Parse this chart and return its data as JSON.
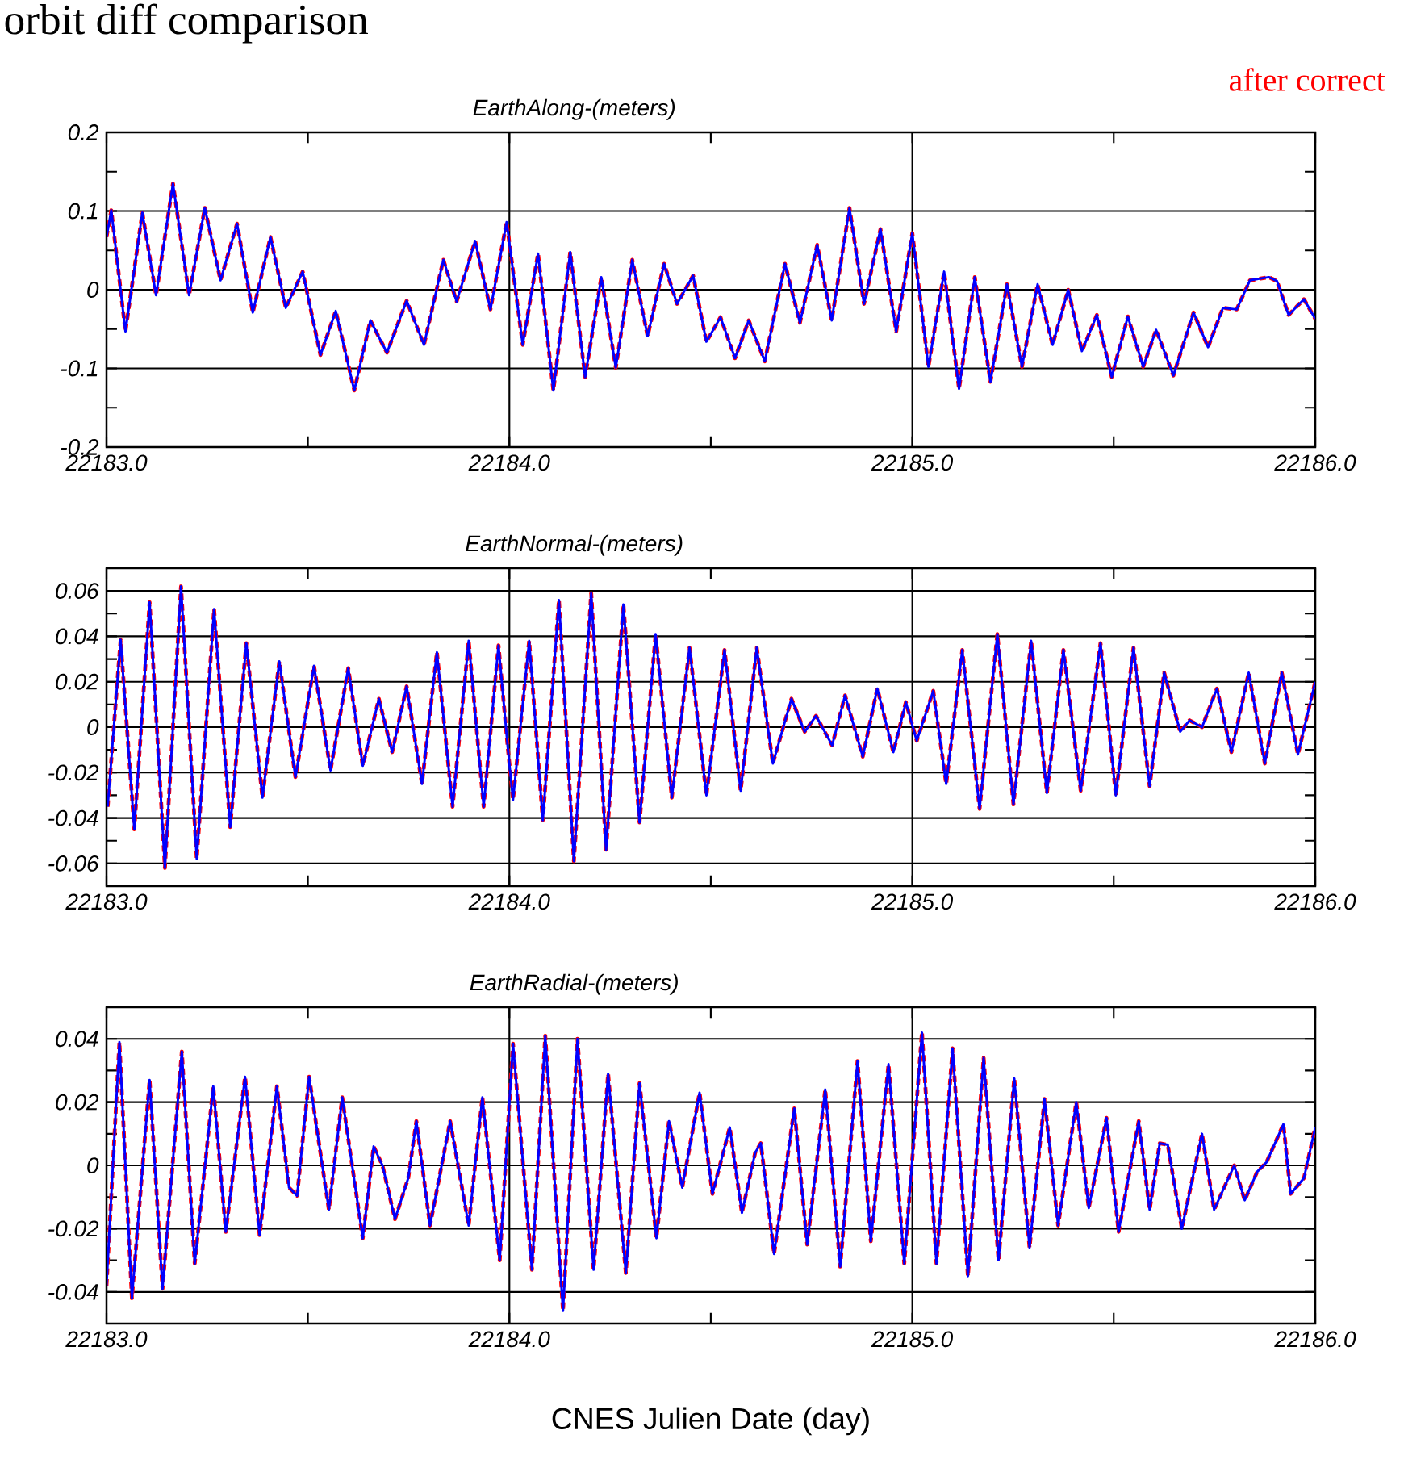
{
  "chart_data": [
    {
      "type": "line",
      "title": "orbit diff comparison",
      "subtitle": "EarthAlong-(meters)",
      "grid": true,
      "xlim": [
        22183,
        22186
      ],
      "ylim": [
        -0.2,
        0.2
      ],
      "xticks": [
        {
          "value": 22183,
          "label": "22183.0"
        },
        {
          "value": 22184,
          "label": "22184.0"
        },
        {
          "value": 22185,
          "label": "22185.0"
        },
        {
          "value": 22186,
          "label": "22186.0"
        }
      ],
      "yticks": [
        -0.2,
        -0.1,
        0,
        0.1,
        0.2
      ],
      "x": [
        22183.0,
        22183.012,
        22183.047,
        22183.089,
        22183.123,
        22183.165,
        22183.205,
        22183.244,
        22183.283,
        22183.324,
        22183.363,
        22183.407,
        22183.445,
        22183.487,
        22183.531,
        22183.569,
        22183.615,
        22183.655,
        22183.696,
        22183.745,
        22183.788,
        22183.836,
        22183.869,
        22183.915,
        22183.953,
        22183.993,
        22184.033,
        22184.071,
        22184.109,
        22184.151,
        22184.188,
        22184.228,
        22184.264,
        22184.305,
        22184.343,
        22184.384,
        22184.416,
        22184.456,
        22184.489,
        22184.524,
        22184.56,
        22184.594,
        22184.634,
        22184.684,
        22184.721,
        22184.764,
        22184.8,
        22184.844,
        22184.88,
        22184.921,
        22184.96,
        22185.0,
        22185.04,
        22185.079,
        22185.116,
        22185.155,
        22185.194,
        22185.235,
        22185.272,
        22185.311,
        22185.348,
        22185.387,
        22185.421,
        22185.458,
        22185.495,
        22185.535,
        22185.573,
        22185.605,
        22185.648,
        22185.698,
        22185.734,
        22185.771,
        22185.805,
        22185.838,
        22185.885,
        22185.905,
        22185.934,
        22185.972,
        22186.0
      ],
      "series": [
        {
          "color": "#0000ff",
          "line_style": "solid",
          "values": [
            0.067,
            0.101,
            -0.053,
            0.098,
            -0.007,
            0.135,
            -0.007,
            0.104,
            0.012,
            0.084,
            -0.029,
            0.067,
            -0.023,
            0.023,
            -0.083,
            -0.027,
            -0.128,
            -0.039,
            -0.08,
            -0.014,
            -0.07,
            0.038,
            -0.015,
            0.062,
            -0.025,
            0.086,
            -0.07,
            0.046,
            -0.128,
            0.048,
            -0.111,
            0.016,
            -0.099,
            0.038,
            -0.059,
            0.033,
            -0.018,
            0.018,
            -0.066,
            -0.035,
            -0.087,
            -0.039,
            -0.091,
            0.033,
            -0.042,
            0.057,
            -0.039,
            0.104,
            -0.018,
            0.077,
            -0.053,
            0.072,
            -0.098,
            0.023,
            -0.126,
            0.016,
            -0.117,
            0.007,
            -0.098,
            0.007,
            -0.07,
            0.0,
            -0.078,
            -0.032,
            -0.111,
            -0.034,
            -0.098,
            -0.051,
            -0.109,
            -0.029,
            -0.073,
            -0.023,
            -0.025,
            0.012,
            0.016,
            0.011,
            -0.032,
            -0.012,
            -0.037
          ]
        },
        {
          "name": "after correct",
          "color": "#ff0000",
          "line_style": "dashed",
          "values": [
            0.067,
            0.101,
            -0.053,
            0.098,
            -0.007,
            0.135,
            -0.007,
            0.104,
            0.012,
            0.084,
            -0.029,
            0.067,
            -0.023,
            0.023,
            -0.083,
            -0.027,
            -0.128,
            -0.039,
            -0.08,
            -0.014,
            -0.07,
            0.038,
            -0.015,
            0.062,
            -0.025,
            0.086,
            -0.07,
            0.046,
            -0.128,
            0.048,
            -0.111,
            0.016,
            -0.099,
            0.038,
            -0.059,
            0.033,
            -0.018,
            0.018,
            -0.066,
            -0.035,
            -0.087,
            -0.039,
            -0.091,
            0.033,
            -0.042,
            0.057,
            -0.039,
            0.104,
            -0.018,
            0.077,
            -0.053,
            0.072,
            -0.098,
            0.023,
            -0.126,
            0.016,
            -0.117,
            0.007,
            -0.098,
            0.007,
            -0.07,
            0.0,
            -0.078,
            -0.032,
            -0.111,
            -0.034,
            -0.098,
            -0.051,
            -0.109,
            -0.029,
            -0.073,
            -0.023,
            -0.025,
            0.012,
            0.016,
            0.011,
            -0.032,
            -0.012,
            -0.037
          ]
        }
      ]
    },
    {
      "type": "line",
      "subtitle": "EarthNormal-(meters)",
      "grid": true,
      "xlim": [
        22183,
        22186
      ],
      "ylim": [
        -0.07,
        0.07
      ],
      "xticks": [
        {
          "value": 22183,
          "label": "22183.0"
        },
        {
          "value": 22184,
          "label": "22184.0"
        },
        {
          "value": 22185,
          "label": "22185.0"
        },
        {
          "value": 22186,
          "label": "22186.0"
        }
      ],
      "yticks": [
        -0.06,
        -0.04,
        -0.02,
        0,
        0.02,
        0.04,
        0.06
      ],
      "x": [
        22183.003,
        22183.035,
        22183.069,
        22183.107,
        22183.145,
        22183.185,
        22183.224,
        22183.267,
        22183.307,
        22183.347,
        22183.387,
        22183.429,
        22183.469,
        22183.515,
        22183.556,
        22183.6,
        22183.636,
        22183.676,
        22183.709,
        22183.745,
        22183.783,
        22183.82,
        22183.859,
        22183.899,
        22183.936,
        22183.973,
        22183.996,
        22184.009,
        22184.049,
        22184.083,
        22184.123,
        22184.16,
        22184.203,
        22184.24,
        22184.283,
        22184.323,
        22184.363,
        22184.403,
        22184.447,
        22184.489,
        22184.534,
        22184.574,
        22184.614,
        22184.654,
        22184.7,
        22184.733,
        22184.761,
        22184.801,
        22184.833,
        22184.877,
        22184.913,
        22184.953,
        22184.984,
        22185.011,
        22185.052,
        22185.084,
        22185.124,
        22185.167,
        22185.211,
        22185.251,
        22185.295,
        22185.334,
        22185.375,
        22185.418,
        22185.467,
        22185.505,
        22185.549,
        22185.589,
        22185.625,
        22185.665,
        22185.688,
        22185.719,
        22185.756,
        22185.792,
        22185.835,
        22185.875,
        22185.917,
        22185.957,
        22186.0
      ],
      "series": [
        {
          "color": "#0000ff",
          "line_style": "solid",
          "values": [
            -0.035,
            0.0385,
            -0.045,
            0.055,
            -0.062,
            0.062,
            -0.058,
            0.052,
            -0.044,
            0.037,
            -0.031,
            0.029,
            -0.022,
            0.027,
            -0.019,
            0.026,
            -0.017,
            0.0125,
            -0.011,
            0.018,
            -0.025,
            0.033,
            -0.035,
            0.038,
            -0.035,
            0.036,
            -0.009,
            -0.032,
            0.038,
            -0.041,
            0.056,
            -0.059,
            0.059,
            -0.054,
            0.054,
            -0.042,
            0.041,
            -0.031,
            0.035,
            -0.03,
            0.034,
            -0.028,
            0.035,
            -0.016,
            0.0125,
            -0.002,
            0.005,
            -0.008,
            0.014,
            -0.013,
            0.017,
            -0.011,
            0.011,
            -0.006,
            0.016,
            -0.025,
            0.034,
            -0.036,
            0.041,
            -0.034,
            0.038,
            -0.029,
            0.034,
            -0.028,
            0.037,
            -0.03,
            0.035,
            -0.026,
            0.024,
            -0.002,
            0.003,
            0.0,
            0.017,
            -0.011,
            0.024,
            -0.016,
            0.024,
            -0.012,
            0.02
          ]
        },
        {
          "color": "#ff0000",
          "line_style": "dashed",
          "values": [
            -0.035,
            0.0385,
            -0.045,
            0.055,
            -0.062,
            0.062,
            -0.058,
            0.052,
            -0.044,
            0.037,
            -0.031,
            0.029,
            -0.022,
            0.027,
            -0.019,
            0.026,
            -0.017,
            0.0125,
            -0.011,
            0.018,
            -0.025,
            0.033,
            -0.035,
            0.038,
            -0.035,
            0.036,
            -0.009,
            -0.032,
            0.038,
            -0.041,
            0.056,
            -0.059,
            0.059,
            -0.054,
            0.054,
            -0.042,
            0.041,
            -0.031,
            0.035,
            -0.03,
            0.034,
            -0.028,
            0.035,
            -0.016,
            0.0125,
            -0.002,
            0.005,
            -0.008,
            0.014,
            -0.013,
            0.017,
            -0.011,
            0.011,
            -0.006,
            0.016,
            -0.025,
            0.034,
            -0.036,
            0.041,
            -0.034,
            0.038,
            -0.029,
            0.034,
            -0.028,
            0.037,
            -0.03,
            0.035,
            -0.026,
            0.024,
            -0.002,
            0.003,
            0.0,
            0.017,
            -0.011,
            0.024,
            -0.016,
            0.024,
            -0.012,
            0.02
          ]
        }
      ]
    },
    {
      "type": "line",
      "subtitle": "EarthRadial-(meters)",
      "xlabel": "CNES Julien Date (day)",
      "grid": true,
      "xlim": [
        22183,
        22186
      ],
      "ylim": [
        -0.05,
        0.05
      ],
      "xticks": [
        {
          "value": 22183,
          "label": "22183.0"
        },
        {
          "value": 22184,
          "label": "22184.0"
        },
        {
          "value": 22185,
          "label": "22185.0"
        },
        {
          "value": 22186,
          "label": "22186.0"
        }
      ],
      "yticks": [
        -0.04,
        -0.02,
        0,
        0.02,
        0.04
      ],
      "x": [
        22183.0,
        22183.032,
        22183.063,
        22183.107,
        22183.139,
        22183.187,
        22183.219,
        22183.265,
        22183.296,
        22183.344,
        22183.38,
        22183.423,
        22183.453,
        22183.473,
        22183.503,
        22183.552,
        22183.585,
        22183.636,
        22183.663,
        22183.685,
        22183.716,
        22183.749,
        22183.769,
        22183.803,
        22183.853,
        22183.899,
        22183.933,
        22183.976,
        22184.009,
        22184.056,
        22184.089,
        22184.133,
        22184.169,
        22184.209,
        22184.245,
        22184.289,
        22184.323,
        22184.365,
        22184.396,
        22184.429,
        22184.472,
        22184.504,
        22184.547,
        22184.577,
        22184.61,
        22184.624,
        22184.657,
        22184.707,
        22184.739,
        22184.784,
        22184.821,
        22184.864,
        22184.897,
        22184.941,
        22184.98,
        22185.024,
        22185.06,
        22185.1,
        22185.138,
        22185.177,
        22185.214,
        22185.253,
        22185.291,
        22185.328,
        22185.362,
        22185.407,
        22185.438,
        22185.482,
        22185.512,
        22185.562,
        22185.589,
        22185.614,
        22185.634,
        22185.669,
        22185.719,
        22185.749,
        22185.799,
        22185.825,
        22185.856,
        22185.879,
        22185.921,
        22185.939,
        22185.972,
        22186.0
      ],
      "series": [
        {
          "color": "#0000ff",
          "line_style": "solid",
          "values": [
            -0.038,
            0.039,
            -0.042,
            0.027,
            -0.039,
            0.036,
            -0.031,
            0.025,
            -0.021,
            0.028,
            -0.022,
            0.025,
            -0.007,
            -0.0096,
            0.028,
            -0.014,
            0.0215,
            -0.023,
            0.006,
            0.0,
            -0.017,
            -0.004,
            0.014,
            -0.019,
            0.014,
            -0.019,
            0.0215,
            -0.03,
            0.0385,
            -0.033,
            0.041,
            -0.046,
            0.04,
            -0.033,
            0.029,
            -0.034,
            0.026,
            -0.023,
            0.014,
            -0.007,
            0.023,
            -0.009,
            0.012,
            -0.015,
            0.004,
            0.007,
            -0.028,
            0.018,
            -0.025,
            0.024,
            -0.032,
            0.033,
            -0.024,
            0.032,
            -0.031,
            0.042,
            -0.031,
            0.037,
            -0.035,
            0.034,
            -0.03,
            0.0275,
            -0.026,
            0.021,
            -0.019,
            0.02,
            -0.0135,
            0.015,
            -0.021,
            0.014,
            -0.014,
            0.007,
            0.0065,
            -0.02,
            0.01,
            -0.014,
            0.0,
            -0.011,
            -0.002,
            0.001,
            0.013,
            -0.009,
            -0.004,
            0.012
          ]
        },
        {
          "color": "#ff0000",
          "line_style": "dashed",
          "values": [
            -0.038,
            0.039,
            -0.042,
            0.027,
            -0.039,
            0.036,
            -0.031,
            0.025,
            -0.021,
            0.028,
            -0.022,
            0.025,
            -0.007,
            -0.0096,
            0.028,
            -0.014,
            0.0215,
            -0.023,
            0.006,
            0.0,
            -0.017,
            -0.004,
            0.014,
            -0.019,
            0.014,
            -0.019,
            0.0215,
            -0.03,
            0.0385,
            -0.033,
            0.041,
            -0.046,
            0.04,
            -0.033,
            0.029,
            -0.034,
            0.026,
            -0.023,
            0.014,
            -0.007,
            0.023,
            -0.009,
            0.012,
            -0.015,
            0.004,
            0.007,
            -0.028,
            0.018,
            -0.025,
            0.024,
            -0.032,
            0.033,
            -0.024,
            0.032,
            -0.031,
            0.042,
            -0.031,
            0.037,
            -0.035,
            0.034,
            -0.03,
            0.0275,
            -0.026,
            0.021,
            -0.019,
            0.02,
            -0.0135,
            0.015,
            -0.021,
            0.014,
            -0.014,
            0.007,
            0.0065,
            -0.02,
            0.01,
            -0.014,
            0.0,
            -0.011,
            -0.002,
            0.001,
            0.013,
            -0.009,
            -0.004,
            0.012
          ]
        }
      ]
    }
  ]
}
